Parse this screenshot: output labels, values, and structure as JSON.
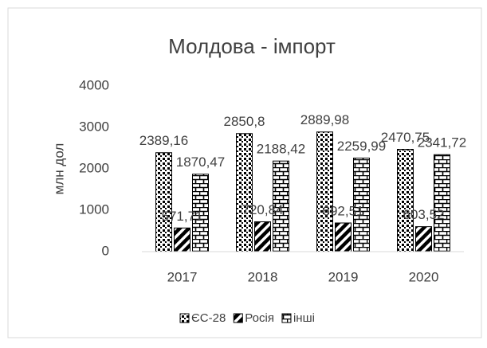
{
  "chart_data": {
    "type": "bar",
    "title": "Молдова - імпорт",
    "y_label": "млн дол",
    "categories": [
      "2017",
      "2018",
      "2019",
      "2020"
    ],
    "series": [
      {
        "name": "ЄС-28",
        "color": "#000000",
        "pattern": "dots",
        "values": [
          2389.16,
          2850.8,
          2889.98,
          2470.75
        ],
        "value_labels": [
          "2389,16",
          "2850,8",
          "2889,98",
          "2470,75"
        ]
      },
      {
        "name": "Росія",
        "color": "#000000",
        "pattern": "diagonal",
        "values": [
          571.71,
          720.84,
          692.51,
          603.52
        ],
        "value_labels": [
          "571,71",
          "720,84",
          "692,51",
          "603,52"
        ]
      },
      {
        "name": "інші",
        "color": "#000000",
        "pattern": "brick",
        "values": [
          1870.47,
          2188.42,
          2259.99,
          2341.72
        ],
        "value_labels": [
          "1870,47",
          "2188,42",
          "2259,99",
          "2341,72"
        ]
      }
    ],
    "ylim": [
      0,
      4000
    ],
    "yticks": [
      0,
      1000,
      2000,
      3000,
      4000
    ],
    "grid": false,
    "legend": "bottom"
  }
}
